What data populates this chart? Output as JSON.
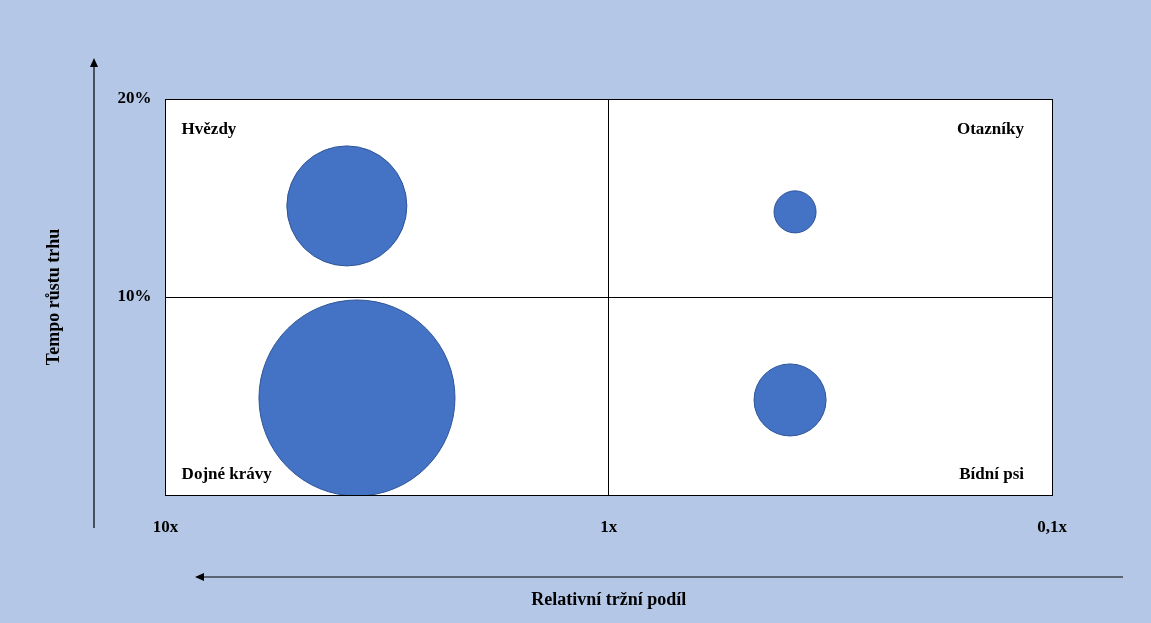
{
  "chart_data": {
    "type": "bubble",
    "xlabel": "Relativní tržní podíl",
    "ylabel": "Tempo růstu trhu",
    "x": [
      3.9,
      0.38,
      3.7,
      0.39
    ],
    "values": [
      14.6,
      14.3,
      4.9,
      4.8
    ],
    "sizes": [
      0.375,
      0.046,
      1,
      0.135
    ],
    "color": "#4472c4",
    "xlim": [
      10,
      0.1
    ],
    "xticks": [
      {
        "value": 10,
        "label": "10x"
      },
      {
        "value": 1,
        "label": "1x"
      },
      {
        "value": 0.1,
        "label": "0,1x"
      }
    ],
    "ylim": [
      0,
      20
    ],
    "yticks": [
      {
        "value": 10,
        "label": "10%"
      },
      {
        "value": 20,
        "label": "20%"
      }
    ],
    "log": "x",
    "grid": true,
    "legend": false,
    "annotations": [
      "Hvězdy",
      "Otazníky",
      "Dojné krávy",
      "Bídní psi"
    ]
  }
}
